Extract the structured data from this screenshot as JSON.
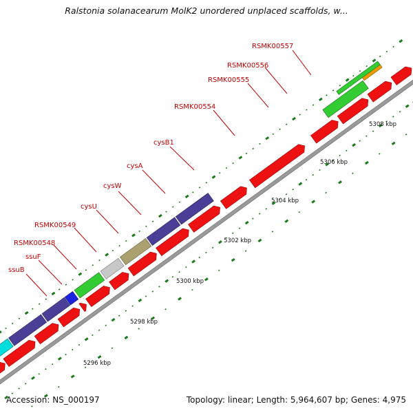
{
  "title": "Ralstonia solanacearum MolK2 unordered unplaced scaffolds, w...",
  "footer": {
    "accession": "Accession: NS_000197",
    "stats": "Topology: linear; Length: 5,964,607 bp; Genes: 4,975"
  },
  "colors": {
    "backbone": "#9a9a9a",
    "tick": "#1a7a1a",
    "label": "#c00000",
    "cds": "#ee1111",
    "cds_edge": "#a00000"
  },
  "scale_labels": [
    "5296 kbp",
    "5298 kbp",
    "5300 kbp",
    "5302 kbp",
    "5304 kbp",
    "5306 kbp",
    "5308 kbp"
  ],
  "genes": [
    {
      "name": "ssuB",
      "color": "#4a3f96"
    },
    {
      "name": "ssuF",
      "color": "#1a22dd"
    },
    {
      "name": "RSMK00548",
      "color": "#33cc33"
    },
    {
      "name": "RSMK00549",
      "color": "#c8c8c8"
    },
    {
      "name": "cysU",
      "color": "#aaa070"
    },
    {
      "name": "cysW",
      "color": "#4a3f96"
    },
    {
      "name": "cysA",
      "color": "#4a3f96"
    },
    {
      "name": "cysB1",
      "color": "#4a3f96"
    },
    {
      "name": "RSMK00554",
      "color": "#4a3f96"
    },
    {
      "name": "RSMK00555",
      "color": "#33cc33"
    },
    {
      "name": "RSMK00556",
      "color": "#33cc33"
    },
    {
      "name": "RSMK00557",
      "color": "#ee9a00"
    }
  ],
  "extra_colors": [
    "#00dddd",
    "#4a3f96"
  ]
}
